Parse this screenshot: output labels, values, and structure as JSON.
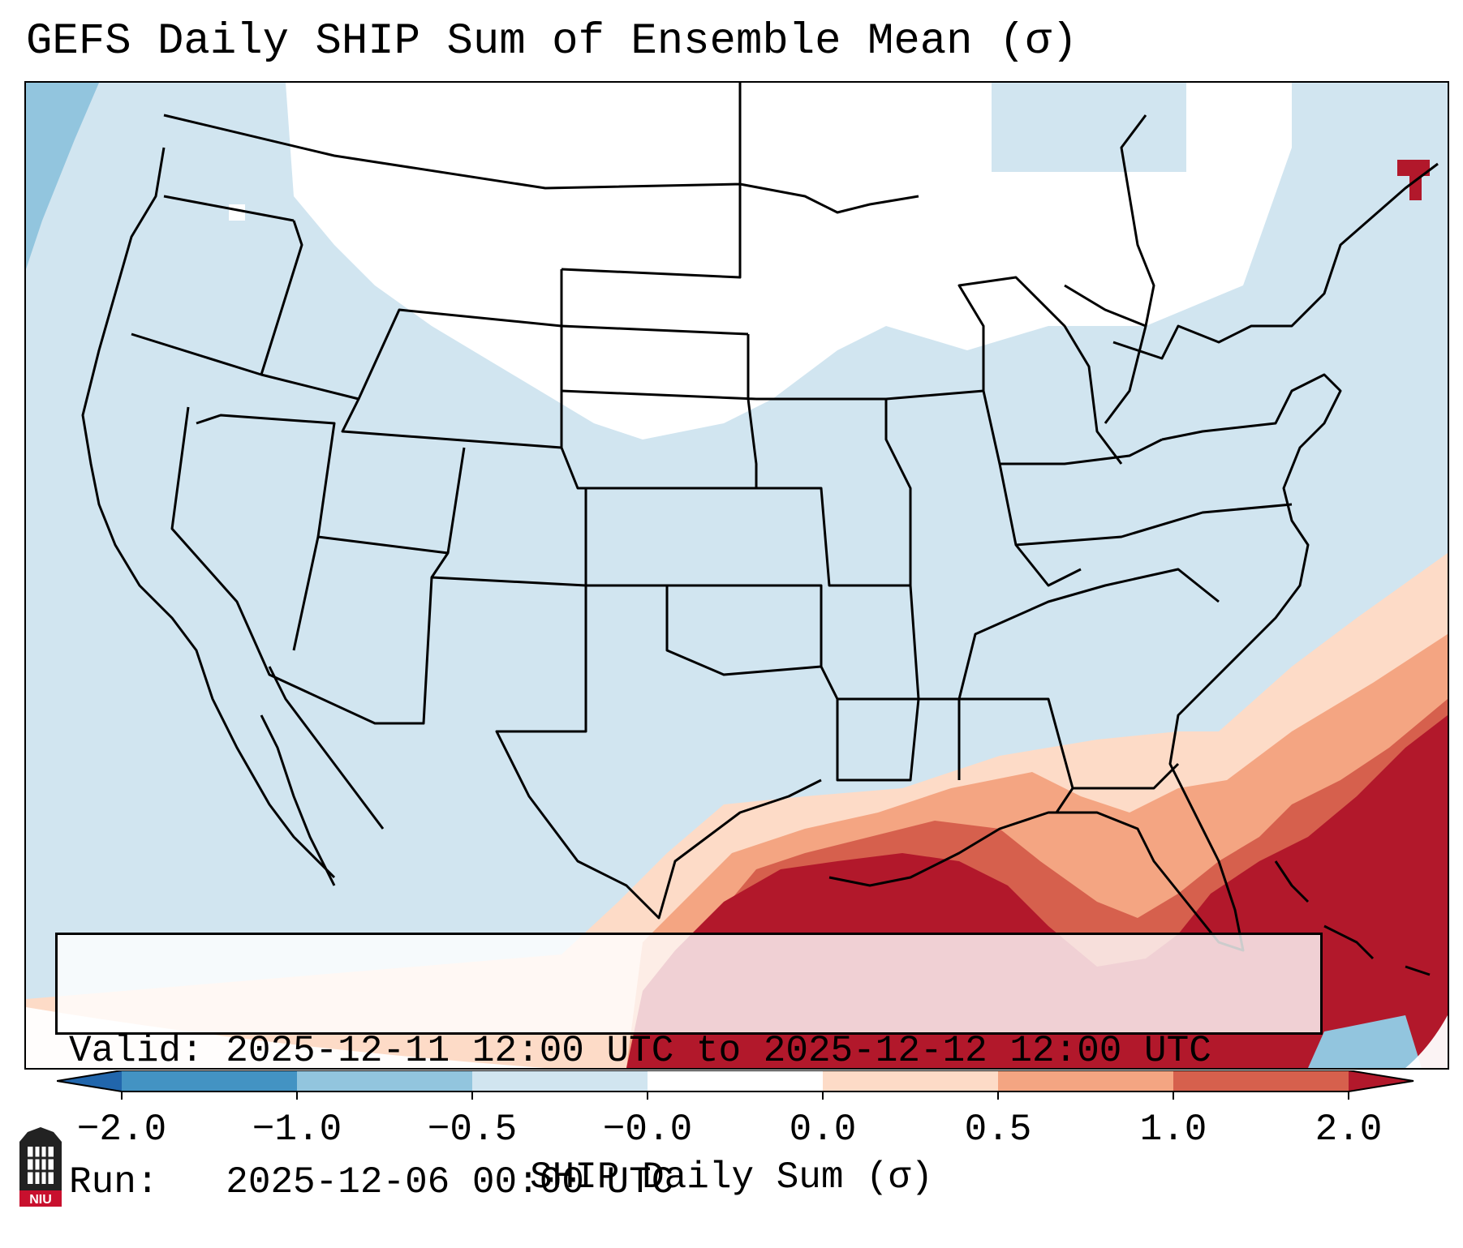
{
  "title": "GEFS Daily SHIP Sum of Ensemble Mean (σ)",
  "info": {
    "valid": "Valid: 2025-12-11 12:00 UTC to 2025-12-12 12:00 UTC",
    "run": "Run:   2025-12-06 00:00 UTC"
  },
  "colorbar": {
    "label": "SHIP Daily Sum (σ)",
    "ticks": [
      "−2.0",
      "−1.0",
      "−0.5",
      "−0.0",
      "0.0",
      "0.5",
      "1.0",
      "2.0"
    ],
    "colors": [
      "#4393c3",
      "#92c5de",
      "#d1e5f0",
      "#ffffff",
      "#fddbc7",
      "#f4a582",
      "#d6604d",
      "#b2182b"
    ],
    "extend": "both"
  },
  "map": {
    "region": "Contiguous United States, Gulf of Mexico, Caribbean",
    "background_color": "#d1e5f0",
    "highlight_color": "#b2182b"
  },
  "logo": {
    "text": "NIU"
  }
}
